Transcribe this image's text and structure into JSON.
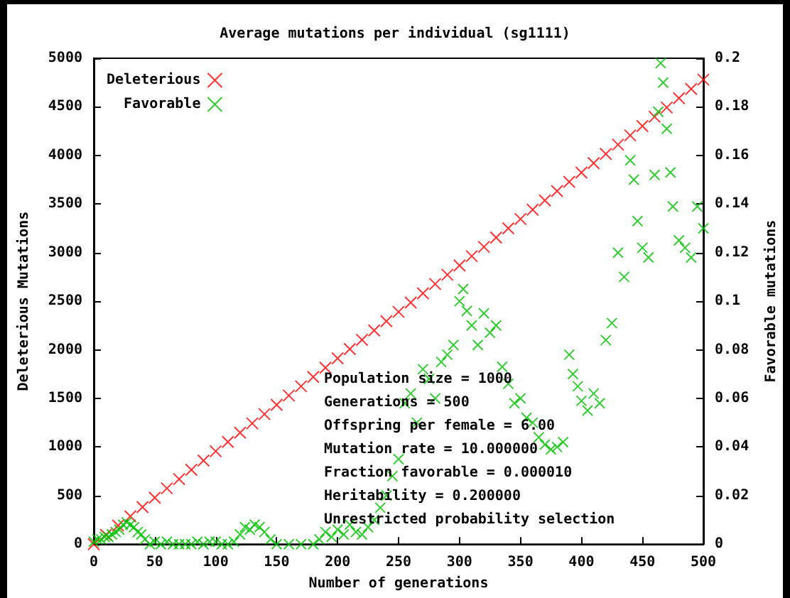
{
  "chart_data": {
    "type": "scatter",
    "title": "Average mutations per individual (sg1111)",
    "xlabel": "Number of generations",
    "ylabel": "Deleterious Mutations",
    "y2label": "Favorable mutations",
    "xlim": [
      0,
      500
    ],
    "xticks": [
      0,
      50,
      100,
      150,
      200,
      250,
      300,
      350,
      400,
      450,
      500
    ],
    "ylim": [
      0,
      5000
    ],
    "yticks": [
      0,
      500,
      1000,
      1500,
      2000,
      2500,
      3000,
      3500,
      4000,
      4500,
      5000
    ],
    "y2lim": [
      0,
      0.2
    ],
    "y2ticks": [
      0,
      0.02,
      0.04,
      0.06,
      0.08,
      0.1,
      0.12,
      0.14,
      0.16,
      0.18,
      0.2
    ],
    "legend": "top left",
    "grid": false,
    "marker": "cross",
    "annotations": [
      "Population size = 1000",
      "Generations = 500",
      "Offspring per female = 6.00",
      "Mutation rate = 10.000000",
      "Fraction favorable = 0.000010",
      "Heritability = 0.200000",
      "Unrestricted probability selection"
    ],
    "series": [
      {
        "name": "Deleterious",
        "color": "#ff0000",
        "x": [
          0,
          10,
          20,
          30,
          40,
          50,
          60,
          70,
          80,
          90,
          100,
          110,
          120,
          130,
          140,
          150,
          160,
          170,
          180,
          190,
          200,
          210,
          220,
          230,
          240,
          250,
          260,
          270,
          280,
          290,
          300,
          310,
          320,
          330,
          340,
          350,
          360,
          370,
          380,
          390,
          400,
          410,
          420,
          430,
          440,
          450,
          460,
          470,
          480,
          490,
          500
        ],
        "values": [
          0,
          96,
          191,
          287,
          382,
          478,
          574,
          669,
          765,
          860,
          956,
          1052,
          1147,
          1243,
          1338,
          1434,
          1530,
          1625,
          1721,
          1816,
          1912,
          2008,
          2103,
          2199,
          2294,
          2390,
          2486,
          2581,
          2677,
          2772,
          2868,
          2964,
          3059,
          3155,
          3250,
          3346,
          3442,
          3537,
          3633,
          3728,
          3824,
          3920,
          4015,
          4111,
          4206,
          4302,
          4398,
          4493,
          4589,
          4684,
          4780
        ]
      },
      {
        "name": "Favorable",
        "color": "#00c000",
        "axis": "y2",
        "x": [
          0,
          3,
          6,
          9,
          12,
          15,
          18,
          21,
          24,
          27,
          30,
          33,
          36,
          39,
          42,
          46,
          50,
          55,
          60,
          65,
          70,
          75,
          80,
          85,
          90,
          95,
          100,
          105,
          110,
          115,
          120,
          124,
          128,
          132,
          136,
          140,
          145,
          150,
          160,
          170,
          180,
          185,
          190,
          195,
          200,
          205,
          210,
          215,
          220,
          225,
          230,
          235,
          240,
          245,
          250,
          255,
          260,
          265,
          270,
          275,
          280,
          285,
          290,
          295,
          300,
          303,
          306,
          310,
          315,
          320,
          325,
          330,
          335,
          340,
          345,
          350,
          355,
          360,
          365,
          370,
          375,
          380,
          385,
          390,
          393,
          397,
          400,
          405,
          410,
          415,
          420,
          425,
          430,
          435,
          440,
          443,
          446,
          450,
          455,
          460,
          463,
          465,
          467,
          470,
          473,
          475,
          480,
          485,
          490,
          495,
          500
        ],
        "values": [
          0.001,
          0.002,
          0.002,
          0.003,
          0.003,
          0.004,
          0.005,
          0.006,
          0.008,
          0.009,
          0.008,
          0.007,
          0.005,
          0.004,
          0.002,
          0,
          0.001,
          0,
          0.001,
          0,
          0,
          0,
          0,
          0.001,
          0,
          0.001,
          0.001,
          0,
          0,
          0.001,
          0.004,
          0.007,
          0.006,
          0.008,
          0.007,
          0.005,
          0.002,
          0,
          0,
          0,
          0,
          0.002,
          0.005,
          0.003,
          0.006,
          0.004,
          0.008,
          0.005,
          0.004,
          0.007,
          0.01,
          0.015,
          0.02,
          0.028,
          0.035,
          0.058,
          0.062,
          0.05,
          0.072,
          0.068,
          0.06,
          0.075,
          0.078,
          0.082,
          0.1,
          0.105,
          0.096,
          0.09,
          0.082,
          0.095,
          0.087,
          0.09,
          0.073,
          0.066,
          0.058,
          0.06,
          0.052,
          0.05,
          0.044,
          0.041,
          0.039,
          0.04,
          0.042,
          0.078,
          0.07,
          0.065,
          0.059,
          0.055,
          0.062,
          0.058,
          0.084,
          0.091,
          0.12,
          0.11,
          0.158,
          0.15,
          0.133,
          0.122,
          0.118,
          0.152,
          0.178,
          0.198,
          0.19,
          0.171,
          0.153,
          0.139,
          0.125,
          0.122,
          0.118,
          0.139,
          0.13
        ]
      }
    ]
  }
}
